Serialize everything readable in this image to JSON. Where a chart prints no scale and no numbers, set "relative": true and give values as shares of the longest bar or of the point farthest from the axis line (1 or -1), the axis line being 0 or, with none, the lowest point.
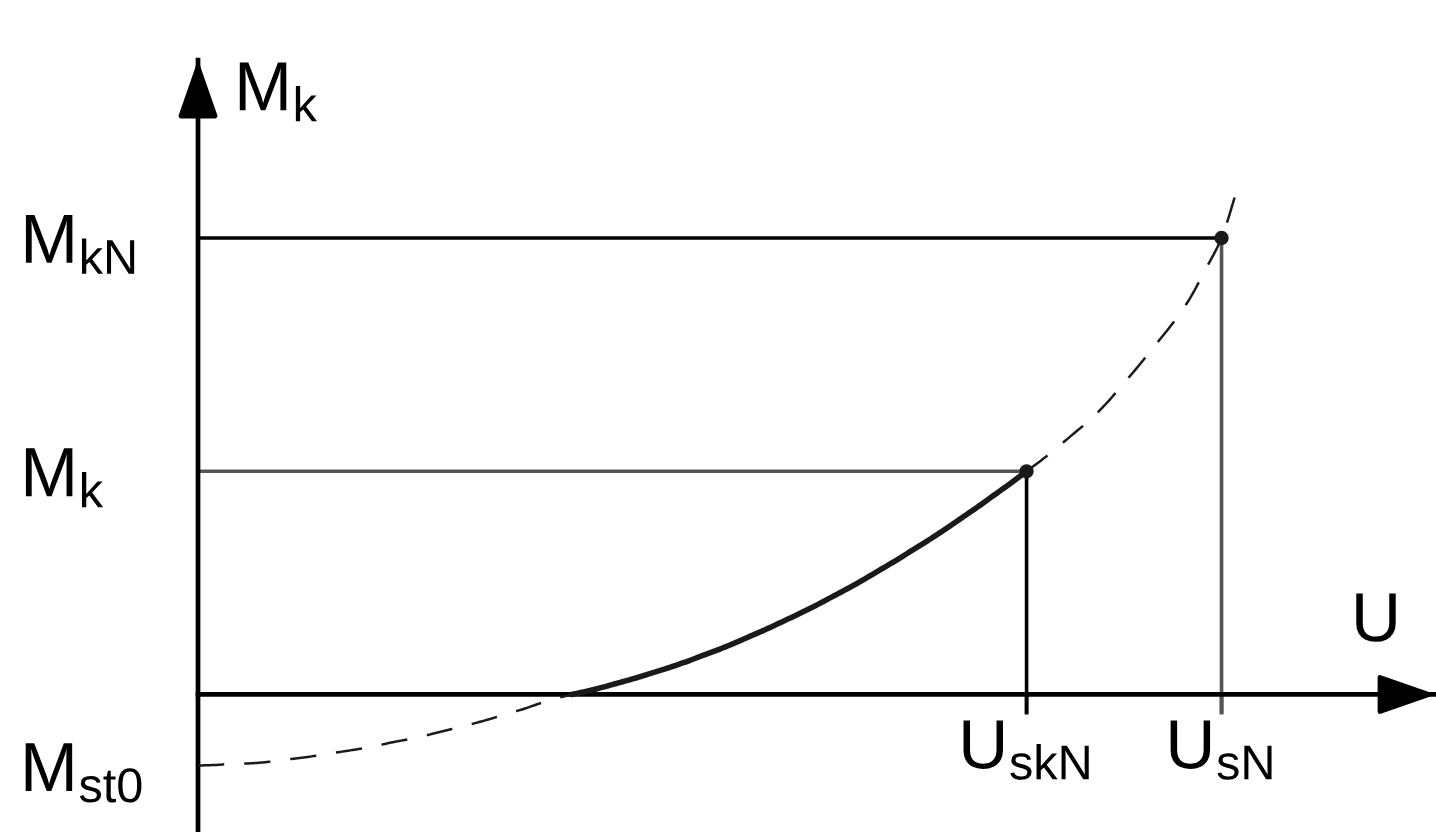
{
  "chart_data": {
    "type": "line",
    "relative": true,
    "xlabel": "U",
    "ylabel": "M$_{k}$",
    "categories": [
      null,
      null,
      null,
      null,
      null,
      null,
      null,
      null,
      null,
      null,
      null,
      null,
      null,
      null,
      null,
      null,
      null,
      null,
      null,
      null,
      null,
      null,
      null,
      null,
      null,
      null,
      null,
      null,
      null,
      null,
      null,
      null,
      null,
      null,
      null,
      null,
      null,
      null,
      null,
      null,
      null,
      null,
      null,
      null,
      null,
      null,
      null,
      null,
      null,
      null,
      null,
      "U$_{skN}$",
      null,
      null,
      null,
      null,
      null,
      null,
      null,
      null,
      null,
      null,
      null,
      "U$_{sN}$",
      null,
      null,
      null,
      null,
      null,
      null,
      null,
      null,
      null,
      null,
      null,
      null,
      null
    ],
    "series": [
      {
        "line_style": "dashed",
        "color": "#1a1a1a",
        "values": [
          -0.14,
          -0.139,
          -0.137,
          -0.136,
          -0.134,
          -0.13,
          -0.126,
          -0.122,
          -0.117,
          -0.112,
          -0.107,
          -0.101,
          -0.094,
          -0.088,
          -0.081,
          -0.073,
          -0.065,
          -0.057,
          -0.048,
          -0.038,
          -0.029,
          -0.018,
          -0.008,
          0,
          null,
          null,
          null,
          null,
          null,
          null,
          null,
          null,
          null,
          null,
          null,
          null,
          null,
          null,
          null,
          null,
          null,
          null,
          null,
          null,
          null,
          null,
          null,
          null,
          null,
          null,
          null,
          null,
          null,
          null,
          null,
          null,
          null,
          null,
          null,
          null,
          null,
          null,
          null,
          null,
          null,
          null,
          null,
          null,
          null,
          null,
          null,
          null,
          null,
          null,
          null,
          null,
          null
        ]
      },
      {
        "line_style": "solid",
        "color": "#1a1a1a",
        "values": [
          null,
          null,
          null,
          null,
          null,
          null,
          null,
          null,
          null,
          null,
          null,
          null,
          null,
          null,
          null,
          null,
          null,
          null,
          null,
          null,
          null,
          null,
          null,
          0,
          0.007,
          0.015,
          0.024,
          0.033,
          0.043,
          0.053,
          0.064,
          0.076,
          0.088,
          0.101,
          0.115,
          0.129,
          0.144,
          0.159,
          0.175,
          0.192,
          0.209,
          0.227,
          0.246,
          0.265,
          0.285,
          0.305,
          0.326,
          0.348,
          0.37,
          0.393,
          0.416,
          0.44,
          null,
          null,
          null,
          null,
          null,
          null,
          null,
          null,
          null,
          null,
          null,
          null,
          null,
          null,
          null,
          null,
          null,
          null,
          null,
          null,
          null,
          null,
          null,
          null,
          null
        ]
      },
      {
        "line_style": "dashed",
        "color": "#1a1a1a",
        "values": [
          null,
          null,
          null,
          null,
          null,
          null,
          null,
          null,
          null,
          null,
          null,
          null,
          null,
          null,
          null,
          null,
          null,
          null,
          null,
          null,
          null,
          null,
          null,
          null,
          null,
          null,
          null,
          null,
          null,
          null,
          null,
          null,
          null,
          null,
          null,
          null,
          null,
          null,
          null,
          null,
          null,
          null,
          null,
          null,
          null,
          null,
          null,
          null,
          null,
          null,
          null,
          0.44,
          0.464,
          0.49,
          0.517,
          0.544,
          0.577,
          0.614,
          0.652,
          0.692,
          0.732,
          0.778,
          0.837,
          0.9,
          1,
          null,
          null,
          null,
          null,
          null,
          null,
          null,
          null,
          null,
          null,
          null,
          null
        ]
      },
      {
        "type": "scatter",
        "marker": "circle",
        "color": "#1a1a1a",
        "values": [
          null,
          null,
          null,
          null,
          null,
          null,
          null,
          null,
          null,
          null,
          null,
          null,
          null,
          null,
          null,
          null,
          null,
          null,
          null,
          null,
          null,
          null,
          null,
          null,
          null,
          null,
          null,
          null,
          null,
          null,
          null,
          null,
          null,
          null,
          null,
          null,
          null,
          null,
          null,
          null,
          null,
          null,
          null,
          null,
          null,
          null,
          null,
          null,
          null,
          null,
          null,
          0.44,
          null,
          null,
          null,
          null,
          null,
          null,
          null,
          null,
          null,
          null,
          null,
          0.9,
          null,
          null,
          null,
          null,
          null,
          null,
          null,
          null,
          null,
          null,
          null,
          null,
          null
        ]
      }
    ],
    "ref_lines": [
      {
        "axis": "y",
        "value": 0.9,
        "label": "M$_{kN}$",
        "color": "#000000"
      },
      {
        "axis": "x",
        "value": "U$_{sN}$",
        "color": "#555555"
      },
      {
        "axis": "y",
        "value": 0.44,
        "label": "M$_{k}$",
        "color": "#555555"
      },
      {
        "axis": "x",
        "value": "U$_{skN}$",
        "color": "#000000"
      }
    ],
    "annotations": [
      "M$_{st0}$"
    ]
  }
}
